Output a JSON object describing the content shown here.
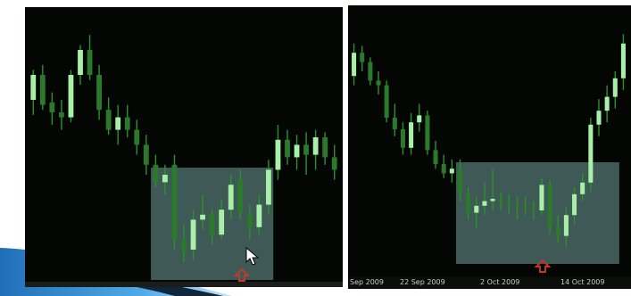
{
  "colors": {
    "background": "#030603",
    "bull_body": "#a8f0a8",
    "bear_body": "#2b7a2b",
    "wick": "#2f8f2f",
    "highlight": "#6f9e9a",
    "marker": "#c03a2a",
    "axis_text": "#c9cdc9"
  },
  "icons": {
    "left_marker": "red-up-arrow-icon",
    "right_marker": "red-up-arrow-icon",
    "cursor": "mouse-pointer-icon"
  },
  "chart_data": [
    {
      "type": "candlestick",
      "x_axis_labels": [],
      "ylim": [
        0,
        100
      ],
      "highlight_region": {
        "from_index": 13,
        "to_index": 25
      },
      "candles": [
        {
          "o": 70,
          "h": 82,
          "l": 64,
          "c": 80
        },
        {
          "o": 80,
          "h": 84,
          "l": 66,
          "c": 68
        },
        {
          "o": 69,
          "h": 73,
          "l": 60,
          "c": 65
        },
        {
          "o": 65,
          "h": 70,
          "l": 58,
          "c": 63
        },
        {
          "o": 63,
          "h": 82,
          "l": 61,
          "c": 80
        },
        {
          "o": 80,
          "h": 92,
          "l": 76,
          "c": 90
        },
        {
          "o": 90,
          "h": 96,
          "l": 78,
          "c": 80
        },
        {
          "o": 80,
          "h": 84,
          "l": 62,
          "c": 66
        },
        {
          "o": 66,
          "h": 71,
          "l": 56,
          "c": 58
        },
        {
          "o": 58,
          "h": 68,
          "l": 52,
          "c": 63
        },
        {
          "o": 63,
          "h": 68,
          "l": 55,
          "c": 58
        },
        {
          "o": 58,
          "h": 62,
          "l": 48,
          "c": 52
        },
        {
          "o": 52,
          "h": 56,
          "l": 40,
          "c": 44
        },
        {
          "o": 44,
          "h": 48,
          "l": 35,
          "c": 37
        },
        {
          "o": 37,
          "h": 44,
          "l": 32,
          "c": 40
        },
        {
          "o": 44,
          "h": 48,
          "l": 10,
          "c": 14
        },
        {
          "o": 14,
          "h": 20,
          "l": 5,
          "c": 9
        },
        {
          "o": 10,
          "h": 26,
          "l": 6,
          "c": 22
        },
        {
          "o": 22,
          "h": 32,
          "l": 18,
          "c": 24
        },
        {
          "o": 24,
          "h": 26,
          "l": 12,
          "c": 16
        },
        {
          "o": 16,
          "h": 30,
          "l": 14,
          "c": 26
        },
        {
          "o": 26,
          "h": 40,
          "l": 22,
          "c": 36
        },
        {
          "o": 38,
          "h": 42,
          "l": 22,
          "c": 25
        },
        {
          "o": 24,
          "h": 28,
          "l": 14,
          "c": 19
        },
        {
          "o": 19,
          "h": 32,
          "l": 16,
          "c": 28
        },
        {
          "o": 28,
          "h": 46,
          "l": 24,
          "c": 42
        },
        {
          "o": 42,
          "h": 60,
          "l": 38,
          "c": 54
        },
        {
          "o": 54,
          "h": 58,
          "l": 44,
          "c": 47
        },
        {
          "o": 47,
          "h": 56,
          "l": 42,
          "c": 52
        },
        {
          "o": 52,
          "h": 57,
          "l": 40,
          "c": 48
        },
        {
          "o": 48,
          "h": 58,
          "l": 42,
          "c": 55
        },
        {
          "o": 55,
          "h": 57,
          "l": 44,
          "c": 47
        },
        {
          "o": 47,
          "h": 52,
          "l": 38,
          "c": 42
        }
      ]
    },
    {
      "type": "candlestick",
      "x_axis_labels": [
        "Sep 2009",
        "22 Sep 2009",
        "2 Oct 2009",
        "14 Oct 2009"
      ],
      "ylim": [
        0,
        100
      ],
      "highlight_region": {
        "from_index": 13,
        "to_index": 32
      },
      "candles": [
        {
          "o": 78,
          "h": 92,
          "l": 74,
          "c": 88
        },
        {
          "o": 88,
          "h": 91,
          "l": 80,
          "c": 84
        },
        {
          "o": 84,
          "h": 86,
          "l": 74,
          "c": 76
        },
        {
          "o": 76,
          "h": 80,
          "l": 70,
          "c": 74
        },
        {
          "o": 74,
          "h": 76,
          "l": 58,
          "c": 60
        },
        {
          "o": 60,
          "h": 66,
          "l": 52,
          "c": 55
        },
        {
          "o": 55,
          "h": 58,
          "l": 44,
          "c": 47
        },
        {
          "o": 47,
          "h": 62,
          "l": 44,
          "c": 58
        },
        {
          "o": 58,
          "h": 66,
          "l": 54,
          "c": 61
        },
        {
          "o": 61,
          "h": 63,
          "l": 44,
          "c": 46
        },
        {
          "o": 46,
          "h": 50,
          "l": 38,
          "c": 40
        },
        {
          "o": 40,
          "h": 44,
          "l": 34,
          "c": 36
        },
        {
          "o": 36,
          "h": 42,
          "l": 32,
          "c": 38
        },
        {
          "o": 38,
          "h": 42,
          "l": 24,
          "c": 27
        },
        {
          "o": 27,
          "h": 30,
          "l": 16,
          "c": 19
        },
        {
          "o": 19,
          "h": 26,
          "l": 12,
          "c": 22
        },
        {
          "o": 22,
          "h": 32,
          "l": 18,
          "c": 24
        },
        {
          "o": 24,
          "h": 38,
          "l": 20,
          "c": 25
        },
        {
          "o": 25,
          "h": 28,
          "l": 20,
          "c": 24
        },
        {
          "o": 24,
          "h": 27,
          "l": 18,
          "c": 23
        },
        {
          "o": 23,
          "h": 26,
          "l": 16,
          "c": 22
        },
        {
          "o": 22,
          "h": 26,
          "l": 18,
          "c": 21
        },
        {
          "o": 21,
          "h": 24,
          "l": 16,
          "c": 20
        },
        {
          "o": 20,
          "h": 34,
          "l": 18,
          "c": 31
        },
        {
          "o": 31,
          "h": 33,
          "l": 10,
          "c": 13
        },
        {
          "o": 13,
          "h": 18,
          "l": 6,
          "c": 9
        },
        {
          "o": 9,
          "h": 22,
          "l": 4,
          "c": 18
        },
        {
          "o": 18,
          "h": 30,
          "l": 14,
          "c": 27
        },
        {
          "o": 27,
          "h": 36,
          "l": 24,
          "c": 32
        },
        {
          "o": 32,
          "h": 60,
          "l": 28,
          "c": 57
        },
        {
          "o": 57,
          "h": 68,
          "l": 52,
          "c": 63
        },
        {
          "o": 63,
          "h": 74,
          "l": 58,
          "c": 69
        },
        {
          "o": 69,
          "h": 80,
          "l": 64,
          "c": 77
        },
        {
          "o": 77,
          "h": 96,
          "l": 72,
          "c": 92
        }
      ]
    }
  ]
}
